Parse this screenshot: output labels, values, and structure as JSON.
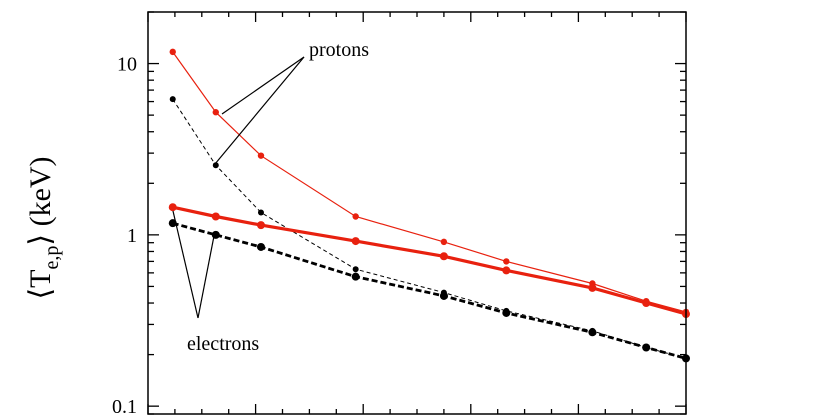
{
  "chart_data": {
    "type": "line",
    "ylabel": "⟨T",
    "ylabel_subscript": "e,p",
    "ylabel_suffix": "⟩ (keV)",
    "yscale": "log",
    "ylim": [
      0.09,
      20
    ],
    "xlim": [
      0,
      1
    ],
    "y_ticks": [
      {
        "value": 10,
        "label": "10"
      },
      {
        "value": 1,
        "label": "1"
      },
      {
        "value": 0.1,
        "label": "0.1"
      }
    ],
    "x_tick_labels_visible": false,
    "annotations": [
      {
        "text": "protons",
        "target_series": [
          0,
          2
        ]
      },
      {
        "text": "electrons",
        "target_series": [
          1,
          3
        ]
      }
    ],
    "series": [
      {
        "color": "#e8210f",
        "style": "solid-thin",
        "x": [
          0.046,
          0.126,
          0.21,
          0.386,
          0.55,
          0.666,
          0.826,
          0.926,
          1.0
        ],
        "y": [
          11.7,
          5.2,
          2.9,
          1.28,
          0.91,
          0.7,
          0.52,
          0.41,
          0.355
        ]
      },
      {
        "color": "#000000",
        "style": "dashed-thin",
        "x": [
          0.046,
          0.126,
          0.21,
          0.386,
          0.55,
          0.666,
          0.826,
          0.926,
          1.0
        ],
        "y": [
          6.2,
          2.55,
          1.35,
          0.63,
          0.46,
          0.36,
          0.275,
          0.22,
          0.19
        ]
      },
      {
        "color": "#e8210f",
        "style": "solid-thick",
        "x": [
          0.046,
          0.126,
          0.21,
          0.386,
          0.55,
          0.666,
          0.826,
          0.926,
          1.0
        ],
        "y": [
          1.45,
          1.28,
          1.14,
          0.92,
          0.75,
          0.62,
          0.49,
          0.4,
          0.345
        ]
      },
      {
        "color": "#000000",
        "style": "dashed-thick",
        "x": [
          0.046,
          0.126,
          0.21,
          0.386,
          0.55,
          0.666,
          0.826,
          0.926,
          1.0
        ],
        "y": [
          1.17,
          1.0,
          0.85,
          0.57,
          0.44,
          0.35,
          0.27,
          0.22,
          0.19
        ]
      }
    ]
  }
}
